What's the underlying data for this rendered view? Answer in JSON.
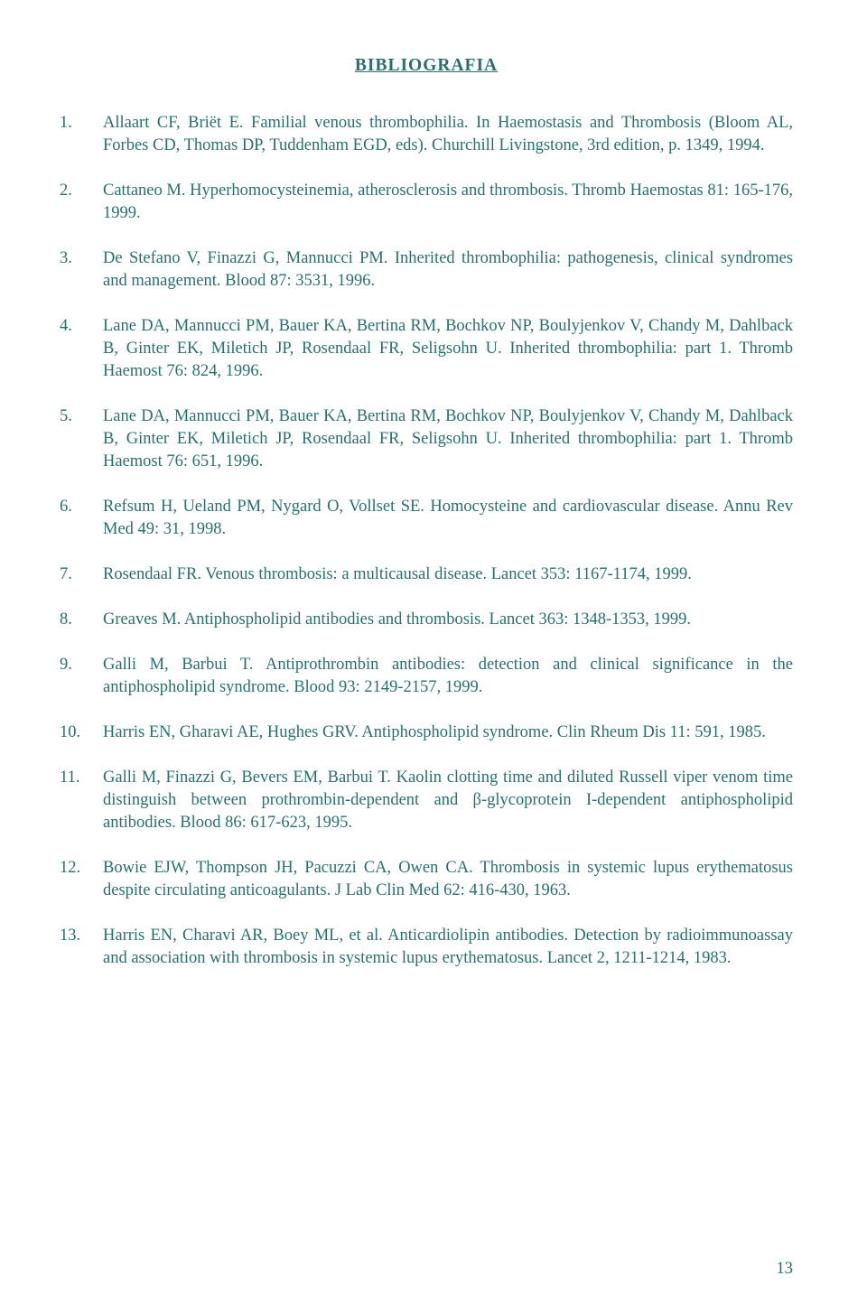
{
  "colors": {
    "text": "#287070",
    "background": "#ffffff"
  },
  "typography": {
    "font_family": "Century Schoolbook, serif",
    "body_fontsize_pt": 14,
    "title_fontsize_pt": 15,
    "line_height": 1.35
  },
  "title": "BIBLIOGRAFIA",
  "page_number": "13",
  "references": [
    {
      "num": "1.",
      "text": "Allaart CF, Briët E. Familial venous thrombophilia. In Haemostasis and Thrombosis (Bloom AL, Forbes CD, Thomas DP, Tuddenham EGD, eds). Churchill Livingstone, 3rd edition, p. 1349, 1994."
    },
    {
      "num": "2.",
      "text": "Cattaneo M. Hyperhomocysteinemia, atherosclerosis and thrombosis. Thromb Haemostas 81: 165-176, 1999."
    },
    {
      "num": "3.",
      "text": "De Stefano V, Finazzi G, Mannucci PM. Inherited thrombophilia: pathogenesis, clinical syndromes and management. Blood 87: 3531, 1996."
    },
    {
      "num": "4.",
      "text": "Lane DA, Mannucci PM, Bauer KA, Bertina RM, Bochkov NP, Boulyjenkov V, Chandy M, Dahlback B, Ginter EK, Miletich JP, Rosendaal FR, Seligsohn U. Inherited thrombophilia: part 1. Thromb Haemost 76: 824, 1996."
    },
    {
      "num": "5.",
      "text": "Lane DA, Mannucci PM, Bauer KA, Bertina RM, Bochkov NP, Boulyjenkov V, Chandy M, Dahlback B, Ginter EK, Miletich JP, Rosendaal FR, Seligsohn U. Inherited thrombophilia: part 1. Thromb Haemost 76: 651, 1996."
    },
    {
      "num": "6.",
      "text": "Refsum H, Ueland PM, Nygard O, Vollset SE. Homocysteine and cardiovascular disease. Annu Rev Med 49: 31, 1998."
    },
    {
      "num": "7.",
      "text": "Rosendaal FR. Venous thrombosis: a multicausal disease. Lancet 353: 1167-1174, 1999."
    },
    {
      "num": "8.",
      "text": "Greaves M. Antiphospholipid antibodies and thrombosis. Lancet 363: 1348-1353, 1999."
    },
    {
      "num": "9.",
      "text": "Galli M, Barbui T. Antiprothrombin antibodies: detection and clinical significance in the antiphospholipid syndrome. Blood 93: 2149-2157, 1999."
    },
    {
      "num": "10.",
      "text": "Harris EN, Gharavi AE, Hughes GRV. Antiphospholipid syndrome. Clin Rheum Dis 11: 591, 1985."
    },
    {
      "num": "11.",
      "text": "Galli M, Finazzi G, Bevers EM, Barbui T. Kaolin clotting time and diluted Russell viper venom time distinguish between prothrombin-dependent and β-glycoprotein I-dependent antiphospholipid antibodies. Blood 86: 617-623, 1995."
    },
    {
      "num": "12.",
      "text": "Bowie EJW, Thompson JH, Pacuzzi CA, Owen CA. Thrombosis in systemic lupus erythematosus despite circulating anticoagulants. J Lab Clin Med 62: 416-430, 1963."
    },
    {
      "num": "13.",
      "text": "Harris EN, Charavi AR, Boey ML, et al. Anticardiolipin antibodies. Detection by radioimmunoassay and association with thrombosis in systemic lupus erythematosus. Lancet 2, 1211-1214, 1983."
    }
  ]
}
